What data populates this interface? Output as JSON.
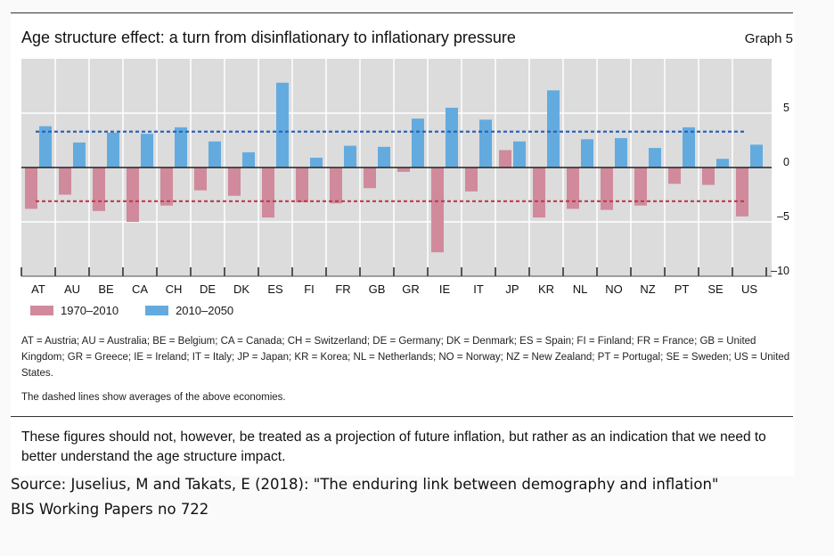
{
  "header": {
    "title": "Age structure effect: a turn from disinflationary to inflationary pressure",
    "graph_label": "Graph 5"
  },
  "chart_data": {
    "type": "bar",
    "title": "Age structure effect: a turn from disinflationary to inflationary pressure",
    "categories": [
      "AT",
      "AU",
      "BE",
      "CA",
      "CH",
      "DE",
      "DK",
      "ES",
      "FI",
      "FR",
      "GB",
      "GR",
      "IE",
      "IT",
      "JP",
      "KR",
      "NL",
      "NO",
      "NZ",
      "PT",
      "SE",
      "US"
    ],
    "series": [
      {
        "name": "1970–2010",
        "color": "#d08a9c",
        "values": [
          -3.8,
          -2.5,
          -4.0,
          -5.0,
          -3.5,
          -2.1,
          -2.6,
          -4.6,
          -3.2,
          -3.3,
          -1.9,
          -0.4,
          -7.8,
          -2.2,
          1.6,
          -4.6,
          -3.8,
          -3.9,
          -3.5,
          -1.5,
          -1.6,
          -4.5
        ]
      },
      {
        "name": "2010–2050",
        "color": "#63abdf",
        "values": [
          3.8,
          2.3,
          3.2,
          3.1,
          3.7,
          2.4,
          1.4,
          7.8,
          0.9,
          2.0,
          1.9,
          4.5,
          5.5,
          4.4,
          2.4,
          7.1,
          2.6,
          2.7,
          1.8,
          3.7,
          0.8,
          2.1
        ]
      }
    ],
    "averages": [
      {
        "series": "1970–2010",
        "value": -3.1,
        "color": "#c0384f"
      },
      {
        "series": "2010–2050",
        "value": 3.3,
        "color": "#2d63b8"
      }
    ],
    "ylim": [
      -10,
      10
    ],
    "yticks": [
      "5",
      "0",
      "–5",
      "–10"
    ],
    "y_axis_position": "right",
    "xlabel": "",
    "ylabel": ""
  },
  "notes": {
    "abbreviations": "AT = Austria;  AU = Australia;  BE = Belgium;  CA = Canada;  CH = Switzerland;  DE = Germany;  DK = Denmark;  ES = Spain;  FI = Finland; FR = France; GB = United Kingdom; GR = Greece; IE = Ireland; IT = Italy; JP = Japan; KR = Korea; NL = Netherlands; NO = Norway; NZ = New Zealand; PT = Portugal; SE = Sweden; US = United States.",
    "dashed": "The dashed lines show averages of the above economies."
  },
  "caption": "These figures should not, however, be treated as a projection of future inflation, but rather as an indication that we need to better understand the age structure impact.",
  "source": {
    "line1": "Source: Juselius, M and Takats, E (2018): \"The enduring link between demography and inflation\"",
    "line2": "BIS Working Papers no 722"
  }
}
